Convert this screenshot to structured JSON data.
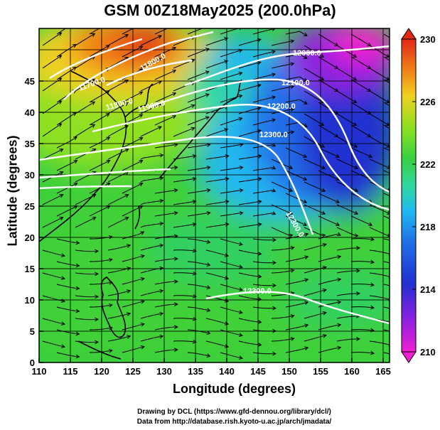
{
  "title": "GSM 00Z18May2025 (200.0hPa)",
  "xaxis": {
    "label": "Longitude (degrees)",
    "ticks": [
      "110",
      "115",
      "120",
      "125",
      "130",
      "135",
      "140",
      "145",
      "150",
      "155",
      "160",
      "165"
    ]
  },
  "yaxis": {
    "label": "Latitude  (degrees)",
    "ticks": [
      "0",
      "5",
      "10",
      "15",
      "20",
      "25",
      "30",
      "35",
      "40",
      "45"
    ]
  },
  "colorbar": {
    "ticks": [
      "210",
      "214",
      "218",
      "222",
      "226",
      "230"
    ]
  },
  "contours": [
    "12000.0",
    "12100.0",
    "12200.0",
    "12300.0",
    "12300.0",
    "11800.0",
    "11700.0",
    "11800.0",
    "11900.0",
    "12300.0"
  ],
  "credits": {
    "line1": "Drawing by DCL (https://www.gfd-dennou.org/library/dcl/)",
    "line2": "Data from http://database.rish.kyoto-u.ac.jp/arch/jmadata/"
  },
  "colors": {
    "c210": "#f020d0",
    "c212": "#9020e0",
    "c214": "#2030d0",
    "c216": "#2070e8",
    "c218": "#20b8f0",
    "c220": "#30d8a0",
    "c222": "#38d040",
    "c224": "#90e020",
    "c226": "#f0d020",
    "c228": "#f07818",
    "c230": "#e02818"
  }
}
